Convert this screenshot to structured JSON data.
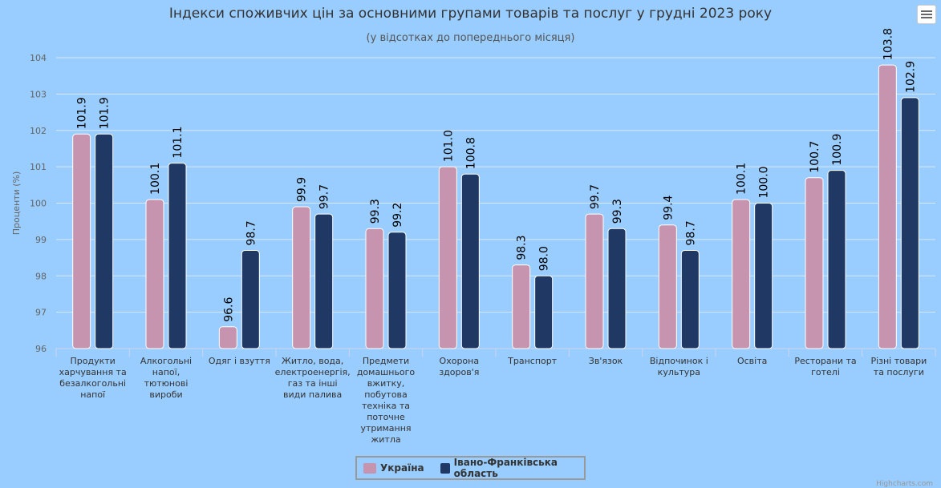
{
  "chart_data": {
    "type": "bar",
    "title": "Індекси споживчих цін за основними групами товарів та послуг у грудні 2023 року",
    "subtitle": "(у відсотках до попереднього місяця)",
    "ylabel": "Проценти (%)",
    "xlabel": "",
    "ylim": [
      96,
      104
    ],
    "yticks": [
      96,
      97,
      98,
      99,
      100,
      101,
      102,
      103,
      104
    ],
    "grid": true,
    "legend_position": "bottom-center",
    "categories": [
      [
        "Продукти",
        "харчування та",
        "безалкогольні",
        "напої"
      ],
      [
        "Алкогольні",
        "напої,",
        "тютюнові",
        "вироби"
      ],
      [
        "Одяг і взуття"
      ],
      [
        "Житло, вода,",
        "електроенергія,",
        "газ та інші",
        "види палива"
      ],
      [
        "Предмети",
        "домашнього",
        "вжитку,",
        "побутова",
        "техніка та",
        "поточне",
        "утримання",
        "житла"
      ],
      [
        "Охорона",
        "здоров'я"
      ],
      [
        "Транспорт"
      ],
      [
        "Зв'язок"
      ],
      [
        "Відпочинок і",
        "культура"
      ],
      [
        "Освіта"
      ],
      [
        "Ресторани та",
        "готелі"
      ],
      [
        "Різні товари",
        "та послуги"
      ]
    ],
    "series": [
      {
        "name": "Україна",
        "color": "#c794b0",
        "values": [
          101.9,
          100.1,
          96.6,
          99.9,
          99.3,
          101.0,
          98.3,
          99.7,
          99.4,
          100.1,
          100.7,
          103.8
        ]
      },
      {
        "name": "Івано-Франківська область",
        "color": "#1f3864",
        "values": [
          101.9,
          101.1,
          98.7,
          99.7,
          99.2,
          100.8,
          98.0,
          99.3,
          98.7,
          100.0,
          100.9,
          102.9
        ]
      }
    ],
    "data_label_decimals": 1
  },
  "credits": "Highcharts.com"
}
